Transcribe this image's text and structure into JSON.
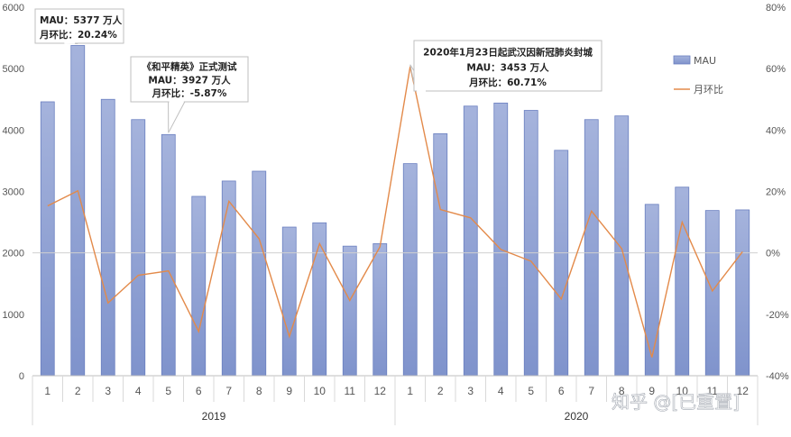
{
  "chart_data": {
    "type": "bar",
    "x_labels": [
      "1",
      "2",
      "3",
      "4",
      "5",
      "6",
      "7",
      "8",
      "9",
      "10",
      "11",
      "12",
      "1",
      "2",
      "3",
      "4",
      "5",
      "6",
      "7",
      "8",
      "9",
      "10",
      "11",
      "12"
    ],
    "year_groups": [
      {
        "label": "2019",
        "start": 0,
        "end": 11
      },
      {
        "label": "2020",
        "start": 12,
        "end": 23
      }
    ],
    "series": [
      {
        "name": "MAU",
        "type": "bar",
        "axis": "left",
        "color": "#8ea0d2",
        "values": [
          4460,
          5377,
          4500,
          4170,
          3927,
          2920,
          3170,
          3330,
          2420,
          2490,
          2110,
          2150,
          3453,
          3940,
          4390,
          4440,
          4320,
          3670,
          4170,
          4230,
          2790,
          3070,
          2690,
          2700
        ]
      },
      {
        "name": "月环比",
        "type": "line",
        "axis": "right",
        "color": "#e38a4a",
        "values": [
          15.3,
          20.24,
          -16.3,
          -7.3,
          -5.87,
          -25.6,
          16.8,
          4.6,
          -27.2,
          3.0,
          -15.5,
          2.0,
          60.71,
          14.1,
          11.4,
          1.1,
          -2.7,
          -15.0,
          13.6,
          1.4,
          -34.0,
          10.0,
          -12.4,
          0.4
        ]
      }
    ],
    "y_left": {
      "min": 0,
      "max": 6000,
      "ticks": [
        "0",
        "1000",
        "2000",
        "3000",
        "4000",
        "5000",
        "6000"
      ]
    },
    "y_right": {
      "min": -40,
      "max": 80,
      "ticks": [
        "-40%",
        "-20%",
        "0%",
        "20%",
        "40%",
        "60%",
        "80%"
      ]
    },
    "legend": {
      "position": "right",
      "items": [
        "MAU",
        "月环比"
      ]
    },
    "annotations": [
      {
        "point": 1,
        "lines": [
          "MAU：5377 万人",
          "月环比：20.24%"
        ]
      },
      {
        "point": 4,
        "lines": [
          "《和平精英》正式测试",
          "MAU：3927 万人",
          "月环比：-5.87%"
        ]
      },
      {
        "point": 12,
        "lines": [
          "2020年1月23日起武汉因新冠肺炎封城",
          "MAU：3453 万人",
          "月环比：60.71%"
        ]
      }
    ],
    "watermark": "知乎 @[已重置]"
  }
}
